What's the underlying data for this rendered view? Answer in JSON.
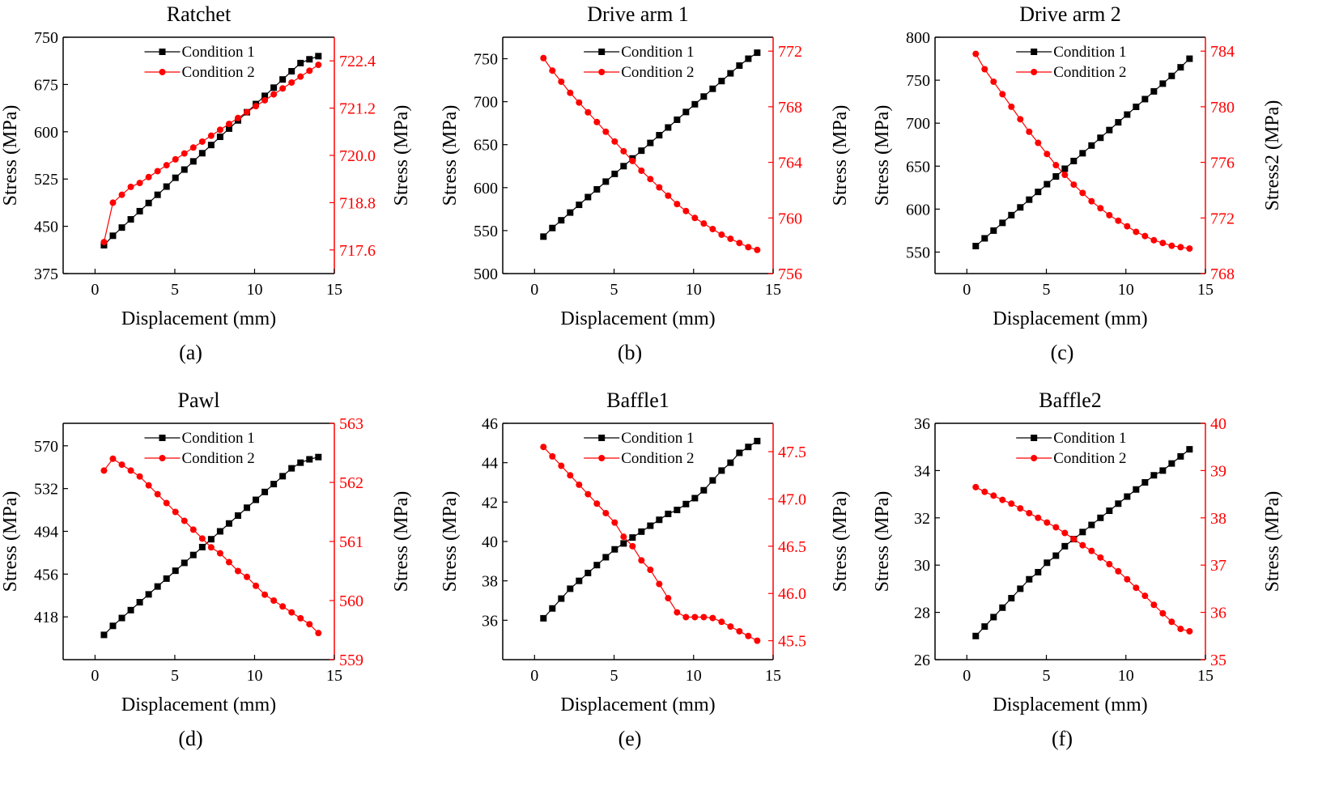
{
  "figure": {
    "colors": {
      "series1": "#000000",
      "series2": "#ff0000",
      "axis": "#000000"
    }
  },
  "chart_data": [
    {
      "type": "line",
      "title": "Ratchet",
      "panel_label": "(a)",
      "xlabel": "Displacement (mm)",
      "ylabel_left": "Stress (MPa)",
      "ylabel_right": "Stress (MPa)",
      "xlim": [
        -2,
        15
      ],
      "xticks": [
        0,
        5,
        10,
        15
      ],
      "ylim_left": [
        375,
        750
      ],
      "yticks_left": [
        375,
        450,
        525,
        600,
        675,
        750
      ],
      "ylim_right": [
        717.0,
        723.0
      ],
      "yticks_right": [
        717.6,
        718.8,
        720.0,
        721.2,
        722.4
      ],
      "legend": [
        "Condition 1",
        "Condition 2"
      ],
      "series": [
        {
          "name": "Condition 1",
          "axis": "left",
          "marker": "square",
          "color": "#000000",
          "x": [
            0.56,
            1.12,
            1.68,
            2.24,
            2.8,
            3.36,
            3.92,
            4.48,
            5.04,
            5.6,
            6.16,
            6.72,
            7.28,
            7.84,
            8.4,
            8.96,
            9.52,
            10.08,
            10.64,
            11.2,
            11.76,
            12.32,
            12.88,
            13.44,
            14.0
          ],
          "y": [
            420,
            435,
            448,
            461,
            474,
            487,
            500,
            513,
            527,
            540,
            553,
            566,
            579,
            592,
            605,
            618,
            631,
            644,
            657,
            670,
            683,
            696,
            709,
            715,
            720
          ]
        },
        {
          "name": "Condition 2",
          "axis": "right",
          "marker": "circle",
          "color": "#ff0000",
          "x": [
            0.56,
            1.12,
            1.68,
            2.24,
            2.8,
            3.36,
            3.92,
            4.48,
            5.04,
            5.6,
            6.16,
            6.72,
            7.28,
            7.84,
            8.4,
            8.96,
            9.52,
            10.08,
            10.64,
            11.2,
            11.76,
            12.32,
            12.88,
            13.44,
            14.0
          ],
          "y": [
            717.8,
            718.8,
            719.0,
            719.2,
            719.3,
            719.45,
            719.6,
            719.75,
            719.9,
            720.05,
            720.2,
            720.35,
            720.5,
            720.65,
            720.8,
            720.95,
            721.1,
            721.25,
            721.4,
            721.55,
            721.7,
            721.85,
            722.0,
            722.15,
            722.3
          ]
        }
      ]
    },
    {
      "type": "line",
      "title": "Drive arm 1",
      "panel_label": "(b)",
      "xlabel": "Displacement (mm)",
      "ylabel_left": "Stress (MPa)",
      "ylabel_right": "Stress (MPa)",
      "xlim": [
        -2,
        15
      ],
      "xticks": [
        0,
        5,
        10,
        15
      ],
      "ylim_left": [
        500,
        775
      ],
      "yticks_left": [
        500,
        550,
        600,
        650,
        700,
        750
      ],
      "ylim_right": [
        756,
        773
      ],
      "yticks_right": [
        756,
        760,
        764,
        768,
        772
      ],
      "legend": [
        "Condition 1",
        "Condition 2"
      ],
      "series": [
        {
          "name": "Condition 1",
          "axis": "left",
          "marker": "square",
          "color": "#000000",
          "x": [
            0.56,
            1.12,
            1.68,
            2.24,
            2.8,
            3.36,
            3.92,
            4.48,
            5.04,
            5.6,
            6.16,
            6.72,
            7.28,
            7.84,
            8.4,
            8.96,
            9.52,
            10.08,
            10.64,
            11.2,
            11.76,
            12.32,
            12.88,
            13.44,
            14.0
          ],
          "y": [
            543,
            553,
            562,
            571,
            580,
            589,
            598,
            607,
            616,
            625,
            634,
            643,
            652,
            661,
            670,
            679,
            688,
            697,
            706,
            715,
            724,
            733,
            742,
            750,
            757
          ]
        },
        {
          "name": "Condition 2",
          "axis": "right",
          "marker": "circle",
          "color": "#ff0000",
          "x": [
            0.56,
            1.12,
            1.68,
            2.24,
            2.8,
            3.36,
            3.92,
            4.48,
            5.04,
            5.6,
            6.16,
            6.72,
            7.28,
            7.84,
            8.4,
            8.96,
            9.52,
            10.08,
            10.64,
            11.2,
            11.76,
            12.32,
            12.88,
            13.44,
            14.0
          ],
          "y": [
            771.5,
            770.6,
            769.8,
            769.0,
            768.3,
            767.6,
            766.9,
            766.2,
            765.5,
            764.8,
            764.1,
            763.4,
            762.8,
            762.2,
            761.6,
            761.0,
            760.5,
            760.0,
            759.6,
            759.2,
            758.8,
            758.5,
            758.2,
            757.9,
            757.7
          ]
        }
      ]
    },
    {
      "type": "line",
      "title": "Drive arm 2",
      "panel_label": "(c)",
      "xlabel": "Displacement (mm)",
      "ylabel_left": "Stress (MPa)",
      "ylabel_right": "Stress2 (MPa)",
      "xlim": [
        -2,
        15
      ],
      "xticks": [
        0,
        5,
        10,
        15
      ],
      "ylim_left": [
        525,
        800
      ],
      "yticks_left": [
        550,
        600,
        650,
        700,
        750,
        800
      ],
      "ylim_right": [
        768,
        785
      ],
      "yticks_right": [
        768,
        772,
        776,
        780,
        784
      ],
      "legend": [
        "Condition 1",
        "Condition 2"
      ],
      "series": [
        {
          "name": "Condition 1",
          "axis": "left",
          "marker": "square",
          "color": "#000000",
          "x": [
            0.56,
            1.12,
            1.68,
            2.24,
            2.8,
            3.36,
            3.92,
            4.48,
            5.04,
            5.6,
            6.16,
            6.72,
            7.28,
            7.84,
            8.4,
            8.96,
            9.52,
            10.08,
            10.64,
            11.2,
            11.76,
            12.32,
            12.88,
            13.44,
            14.0
          ],
          "y": [
            557,
            566,
            575,
            584,
            593,
            602,
            611,
            620,
            629,
            638,
            647,
            656,
            665,
            674,
            683,
            692,
            701,
            710,
            719,
            728,
            737,
            746,
            755,
            765,
            775
          ]
        },
        {
          "name": "Condition 2",
          "axis": "right",
          "marker": "circle",
          "color": "#ff0000",
          "x": [
            0.56,
            1.12,
            1.68,
            2.24,
            2.8,
            3.36,
            3.92,
            4.48,
            5.04,
            5.6,
            6.16,
            6.72,
            7.28,
            7.84,
            8.4,
            8.96,
            9.52,
            10.08,
            10.64,
            11.2,
            11.76,
            12.32,
            12.88,
            13.44,
            14.0
          ],
          "y": [
            783.8,
            782.7,
            781.8,
            780.9,
            780.0,
            779.1,
            778.2,
            777.4,
            776.6,
            775.8,
            775.1,
            774.4,
            773.8,
            773.2,
            772.7,
            772.2,
            771.8,
            771.4,
            771.0,
            770.7,
            770.4,
            770.2,
            770.0,
            769.9,
            769.8
          ]
        }
      ]
    },
    {
      "type": "line",
      "title": "Pawl",
      "panel_label": "(d)",
      "xlabel": "Displacement (mm)",
      "ylabel_left": "Stress (MPa)",
      "ylabel_right": "Stress (MPa)",
      "xlim": [
        -2,
        15
      ],
      "xticks": [
        0,
        5,
        10,
        15
      ],
      "ylim_left": [
        380,
        590
      ],
      "yticks_left": [
        418,
        456,
        494,
        532,
        570
      ],
      "ylim_right": [
        559,
        563
      ],
      "yticks_right": [
        559,
        560,
        561,
        562,
        563
      ],
      "legend": [
        "Condition 1",
        "Condition 2"
      ],
      "series": [
        {
          "name": "Condition 1",
          "axis": "left",
          "marker": "square",
          "color": "#000000",
          "x": [
            0.56,
            1.12,
            1.68,
            2.24,
            2.8,
            3.36,
            3.92,
            4.48,
            5.04,
            5.6,
            6.16,
            6.72,
            7.28,
            7.84,
            8.4,
            8.96,
            9.52,
            10.08,
            10.64,
            11.2,
            11.76,
            12.32,
            12.88,
            13.44,
            14.0
          ],
          "y": [
            402,
            410,
            417,
            424,
            431,
            438,
            445,
            452,
            459,
            466,
            473,
            480,
            487,
            494,
            501,
            508,
            515,
            522,
            529,
            536,
            543,
            550,
            555,
            558,
            560
          ]
        },
        {
          "name": "Condition 2",
          "axis": "right",
          "marker": "circle",
          "color": "#ff0000",
          "x": [
            0.56,
            1.12,
            1.68,
            2.24,
            2.8,
            3.36,
            3.92,
            4.48,
            5.04,
            5.6,
            6.16,
            6.72,
            7.28,
            7.84,
            8.4,
            8.96,
            9.52,
            10.08,
            10.64,
            11.2,
            11.76,
            12.32,
            12.88,
            13.44,
            14.0
          ],
          "y": [
            562.2,
            562.4,
            562.3,
            562.2,
            562.1,
            561.95,
            561.8,
            561.65,
            561.5,
            561.35,
            561.2,
            561.05,
            560.9,
            560.8,
            560.65,
            560.5,
            560.4,
            560.25,
            560.1,
            560.0,
            559.9,
            559.8,
            559.7,
            559.6,
            559.45
          ]
        }
      ]
    },
    {
      "type": "line",
      "title": "Baffle1",
      "panel_label": "(e)",
      "xlabel": "Displacement (mm)",
      "ylabel_left": "Stress (MPa)",
      "ylabel_right": "Stress (MPa)",
      "xlim": [
        -2,
        15
      ],
      "xticks": [
        0,
        5,
        10,
        15
      ],
      "ylim_left": [
        34,
        46
      ],
      "yticks_left": [
        36,
        38,
        40,
        42,
        44,
        46
      ],
      "ylim_right": [
        45.3,
        47.8
      ],
      "yticks_right": [
        45.5,
        46.0,
        46.5,
        47.0,
        47.5
      ],
      "legend": [
        "Condition 1",
        "Condition 2"
      ],
      "series": [
        {
          "name": "Condition 1",
          "axis": "left",
          "marker": "square",
          "color": "#000000",
          "x": [
            0.56,
            1.12,
            1.68,
            2.24,
            2.8,
            3.36,
            3.92,
            4.48,
            5.04,
            5.6,
            6.16,
            6.72,
            7.28,
            7.84,
            8.4,
            8.96,
            9.52,
            10.08,
            10.64,
            11.2,
            11.76,
            12.32,
            12.88,
            13.44,
            14.0
          ],
          "y": [
            36.1,
            36.6,
            37.1,
            37.6,
            38.0,
            38.4,
            38.8,
            39.2,
            39.6,
            39.9,
            40.2,
            40.5,
            40.8,
            41.1,
            41.4,
            41.6,
            41.9,
            42.2,
            42.6,
            43.1,
            43.6,
            44.0,
            44.5,
            44.8,
            45.1
          ]
        },
        {
          "name": "Condition 2",
          "axis": "right",
          "marker": "circle",
          "color": "#ff0000",
          "x": [
            0.56,
            1.12,
            1.68,
            2.24,
            2.8,
            3.36,
            3.92,
            4.48,
            5.04,
            5.6,
            6.16,
            6.72,
            7.28,
            7.84,
            8.4,
            8.96,
            9.52,
            10.08,
            10.64,
            11.2,
            11.76,
            12.32,
            12.88,
            13.44,
            14.0
          ],
          "y": [
            47.55,
            47.45,
            47.35,
            47.25,
            47.15,
            47.05,
            46.95,
            46.85,
            46.75,
            46.6,
            46.5,
            46.35,
            46.25,
            46.1,
            45.95,
            45.8,
            45.75,
            45.75,
            45.75,
            45.74,
            45.7,
            45.65,
            45.6,
            45.55,
            45.5
          ]
        }
      ]
    },
    {
      "type": "line",
      "title": "Baffle2",
      "panel_label": "(f)",
      "xlabel": "Displacement (mm)",
      "ylabel_left": "Stress (MPa)",
      "ylabel_right": "Stress (MPa)",
      "xlim": [
        -2,
        15
      ],
      "xticks": [
        0,
        5,
        10,
        15
      ],
      "ylim_left": [
        26,
        36
      ],
      "yticks_left": [
        26,
        28,
        30,
        32,
        34,
        36
      ],
      "ylim_right": [
        35,
        40
      ],
      "yticks_right": [
        35,
        36,
        37,
        38,
        39,
        40
      ],
      "legend": [
        "Condition 1",
        "Condition 2"
      ],
      "series": [
        {
          "name": "Condition 1",
          "axis": "left",
          "marker": "square",
          "color": "#000000",
          "x": [
            0.56,
            1.12,
            1.68,
            2.24,
            2.8,
            3.36,
            3.92,
            4.48,
            5.04,
            5.6,
            6.16,
            6.72,
            7.28,
            7.84,
            8.4,
            8.96,
            9.52,
            10.08,
            10.64,
            11.2,
            11.76,
            12.32,
            12.88,
            13.44,
            14.0
          ],
          "y": [
            27.0,
            27.4,
            27.8,
            28.2,
            28.6,
            29.0,
            29.4,
            29.7,
            30.1,
            30.4,
            30.8,
            31.1,
            31.4,
            31.7,
            32.0,
            32.3,
            32.6,
            32.9,
            33.2,
            33.5,
            33.8,
            34.0,
            34.3,
            34.6,
            34.9
          ]
        },
        {
          "name": "Condition 2",
          "axis": "right",
          "marker": "circle",
          "color": "#ff0000",
          "x": [
            0.56,
            1.12,
            1.68,
            2.24,
            2.8,
            3.36,
            3.92,
            4.48,
            5.04,
            5.6,
            6.16,
            6.72,
            7.28,
            7.84,
            8.4,
            8.96,
            9.52,
            10.08,
            10.64,
            11.2,
            11.76,
            12.32,
            12.88,
            13.44,
            14.0
          ],
          "y": [
            38.65,
            38.55,
            38.47,
            38.38,
            38.3,
            38.2,
            38.1,
            38.0,
            37.9,
            37.8,
            37.68,
            37.55,
            37.42,
            37.3,
            37.16,
            37.02,
            36.87,
            36.7,
            36.52,
            36.35,
            36.16,
            35.98,
            35.8,
            35.65,
            35.6
          ]
        }
      ]
    }
  ]
}
